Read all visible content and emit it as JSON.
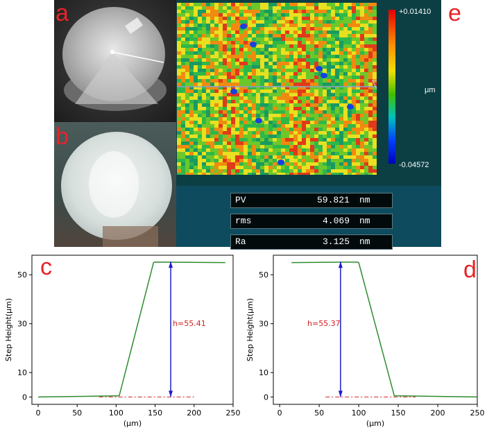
{
  "panel_letters": {
    "a": "a",
    "b": "b",
    "c": "c",
    "d": "d",
    "e": "e"
  },
  "colorbar": {
    "max": "+0.01410",
    "min": "-0.04572",
    "unit": "μm"
  },
  "stats": [
    {
      "name": "PV",
      "value": "59.821",
      "unit": "nm"
    },
    {
      "name": "rms",
      "value": "4.069",
      "unit": "nm"
    },
    {
      "name": "Ra",
      "value": "3.125",
      "unit": "nm"
    }
  ],
  "colors": {
    "profile": "#2e8b2e",
    "arrow": "#1c1cc8",
    "baseline": "#d42020",
    "annotation": "#d42020"
  },
  "chart_data": [
    {
      "type": "line",
      "panel": "c",
      "xlabel": "(μm)",
      "ylabel": "Step Height(μm)",
      "xlim": [
        -8,
        250
      ],
      "ylim": [
        -3,
        58
      ],
      "xticks": [
        0,
        50,
        100,
        150,
        200,
        250
      ],
      "yticks": [
        0,
        10,
        30,
        50
      ],
      "series": [
        {
          "values_x": [
            0,
            104,
            148,
            150,
            240
          ],
          "values_y": [
            0,
            0.5,
            55,
            55.2,
            55
          ]
        }
      ],
      "baseline": {
        "x": [
          78,
          200
        ],
        "y": 0
      },
      "arrow": {
        "x": 170,
        "y_from": 0,
        "y_to": 55.41
      },
      "annotation": {
        "text": "h=55.41",
        "x": 170,
        "y": 29
      }
    },
    {
      "type": "line",
      "panel": "d",
      "xlabel": "(μm)",
      "ylabel": "Step Height(μm)",
      "xlim": [
        -8,
        250
      ],
      "ylim": [
        -3,
        58
      ],
      "xticks": [
        0,
        50,
        100,
        150,
        200,
        250
      ],
      "yticks": [
        0,
        10,
        30,
        50
      ],
      "series": [
        {
          "values_x": [
            15,
            98,
            100,
            145,
            250
          ],
          "values_y": [
            55,
            55.2,
            55,
            0.5,
            0
          ]
        }
      ],
      "baseline": {
        "x": [
          58,
          172
        ],
        "y": 0
      },
      "arrow": {
        "x": 77,
        "y_from": 0,
        "y_to": 55.37
      },
      "annotation": {
        "text": "h=55.37",
        "x": 35,
        "y": 29
      }
    }
  ]
}
